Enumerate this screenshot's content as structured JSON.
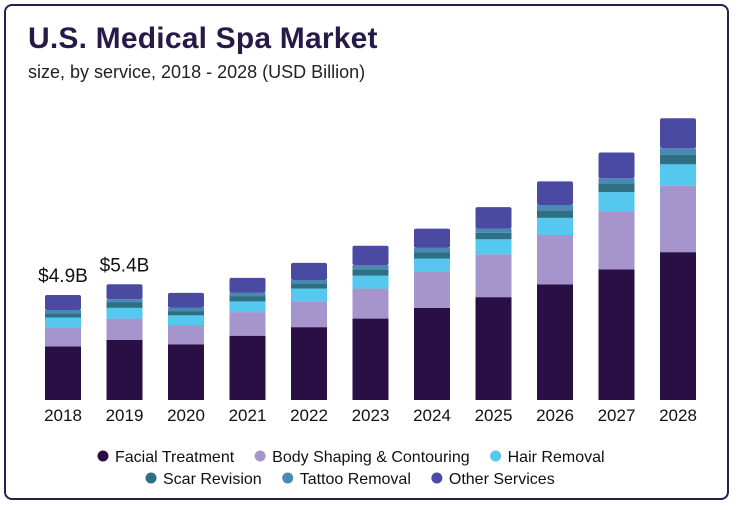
{
  "chart_data": {
    "type": "bar",
    "stacked": true,
    "title": "U.S. Medical Spa Market",
    "subtitle": "size, by service, 2018 - 2028 (USD Billion)",
    "categories": [
      "2018",
      "2019",
      "2020",
      "2021",
      "2022",
      "2023",
      "2024",
      "2025",
      "2026",
      "2027",
      "2028"
    ],
    "series": [
      {
        "name": "Facial Treatment",
        "color": "#2a0f44",
        "values": [
          2.5,
          2.8,
          2.6,
          3.0,
          3.4,
          3.8,
          4.3,
          4.8,
          5.4,
          6.1,
          6.9
        ]
      },
      {
        "name": "Body Shaping & Contouring",
        "color": "#a595cc",
        "values": [
          0.9,
          1.0,
          0.9,
          1.1,
          1.2,
          1.4,
          1.7,
          2.0,
          2.3,
          2.7,
          3.1
        ]
      },
      {
        "name": "Hair Removal",
        "color": "#55c8f0",
        "values": [
          0.45,
          0.5,
          0.45,
          0.5,
          0.6,
          0.6,
          0.6,
          0.7,
          0.8,
          0.9,
          1.0
        ]
      },
      {
        "name": "Scar Revision",
        "color": "#2f6f84",
        "values": [
          0.2,
          0.25,
          0.2,
          0.25,
          0.25,
          0.3,
          0.3,
          0.3,
          0.35,
          0.4,
          0.45
        ]
      },
      {
        "name": "Tattoo Removal",
        "color": "#4a88b5",
        "values": [
          0.15,
          0.15,
          0.15,
          0.15,
          0.15,
          0.2,
          0.2,
          0.2,
          0.25,
          0.25,
          0.3
        ]
      },
      {
        "name": "Other Services",
        "color": "#4a4aa3",
        "values": [
          0.7,
          0.7,
          0.7,
          0.7,
          0.8,
          0.9,
          0.9,
          1.0,
          1.1,
          1.2,
          1.4
        ]
      }
    ],
    "data_labels": [
      {
        "category": "2018",
        "text": "$4.9B"
      },
      {
        "category": "2019",
        "text": "$5.4B"
      }
    ],
    "ylim": [
      0,
      14
    ],
    "grid": false,
    "legend_position": "bottom"
  }
}
